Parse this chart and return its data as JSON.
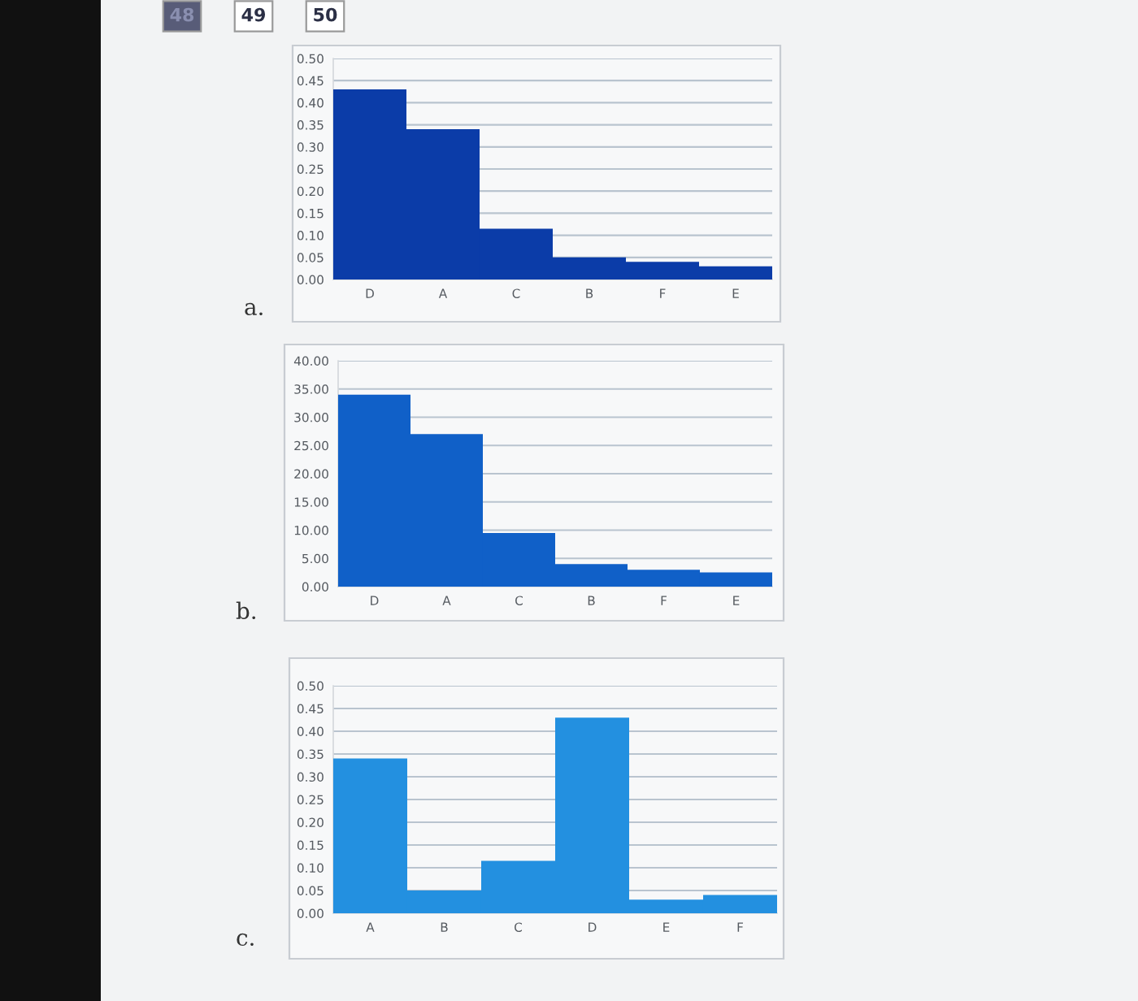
{
  "chart_data": [
    {
      "type": "bar",
      "title": "a.",
      "annotations": [
        "48",
        "49",
        "50"
      ],
      "categories": [
        "D",
        "A",
        "C",
        "B",
        "F",
        "E"
      ],
      "values": [
        0.43,
        0.34,
        0.115,
        0.05,
        0.04,
        0.03
      ],
      "color": "#0b3ca8",
      "ylim": [
        0,
        0.5
      ],
      "yticks": [
        {
          "value": 0,
          "label": "0.00"
        },
        {
          "value": 0.05,
          "label": "0.05"
        },
        {
          "value": 0.1,
          "label": "0.10"
        },
        {
          "value": 0.15,
          "label": "0.15"
        },
        {
          "value": 0.2,
          "label": "0.20"
        },
        {
          "value": 0.25,
          "label": "0.25"
        },
        {
          "value": 0.3,
          "label": "0.30"
        },
        {
          "value": 0.35,
          "label": "0.35"
        },
        {
          "value": 0.4,
          "label": "0.40"
        },
        {
          "value": 0.45,
          "label": "0.45"
        },
        {
          "value": 0.5,
          "label": "0.50"
        }
      ],
      "grid": "y",
      "legend": false
    },
    {
      "type": "bar",
      "title": "b.",
      "categories": [
        "D",
        "A",
        "C",
        "B",
        "F",
        "E"
      ],
      "values": [
        34,
        27,
        9.5,
        4,
        3,
        2.5
      ],
      "color": "#1060c8",
      "ylim": [
        0,
        40
      ],
      "yticks": [
        {
          "value": 0,
          "label": "0.00"
        },
        {
          "value": 5,
          "label": "5.00"
        },
        {
          "value": 10,
          "label": "10.00"
        },
        {
          "value": 15,
          "label": "15.00"
        },
        {
          "value": 20,
          "label": "20.00"
        },
        {
          "value": 25,
          "label": "25.00"
        },
        {
          "value": 30,
          "label": "30.00"
        },
        {
          "value": 35,
          "label": "35.00"
        },
        {
          "value": 40,
          "label": "40.00"
        }
      ],
      "grid": "y",
      "legend": false
    },
    {
      "type": "bar",
      "title": "c.",
      "categories": [
        "A",
        "B",
        "C",
        "D",
        "E",
        "F"
      ],
      "values": [
        0.34,
        0.05,
        0.115,
        0.43,
        0.03,
        0.04
      ],
      "color": "#2390e0",
      "ylim": [
        0,
        0.5
      ],
      "yticks": [
        {
          "value": 0,
          "label": "0.00"
        },
        {
          "value": 0.05,
          "label": "0.05"
        },
        {
          "value": 0.1,
          "label": "0.10"
        },
        {
          "value": 0.15,
          "label": "0.15"
        },
        {
          "value": 0.2,
          "label": "0.20"
        },
        {
          "value": 0.25,
          "label": "0.25"
        },
        {
          "value": 0.3,
          "label": "0.30"
        },
        {
          "value": 0.35,
          "label": "0.35"
        },
        {
          "value": 0.4,
          "label": "0.40"
        },
        {
          "value": 0.45,
          "label": "0.45"
        },
        {
          "value": 0.5,
          "label": "0.50"
        }
      ],
      "grid": "y",
      "legend": false
    }
  ]
}
